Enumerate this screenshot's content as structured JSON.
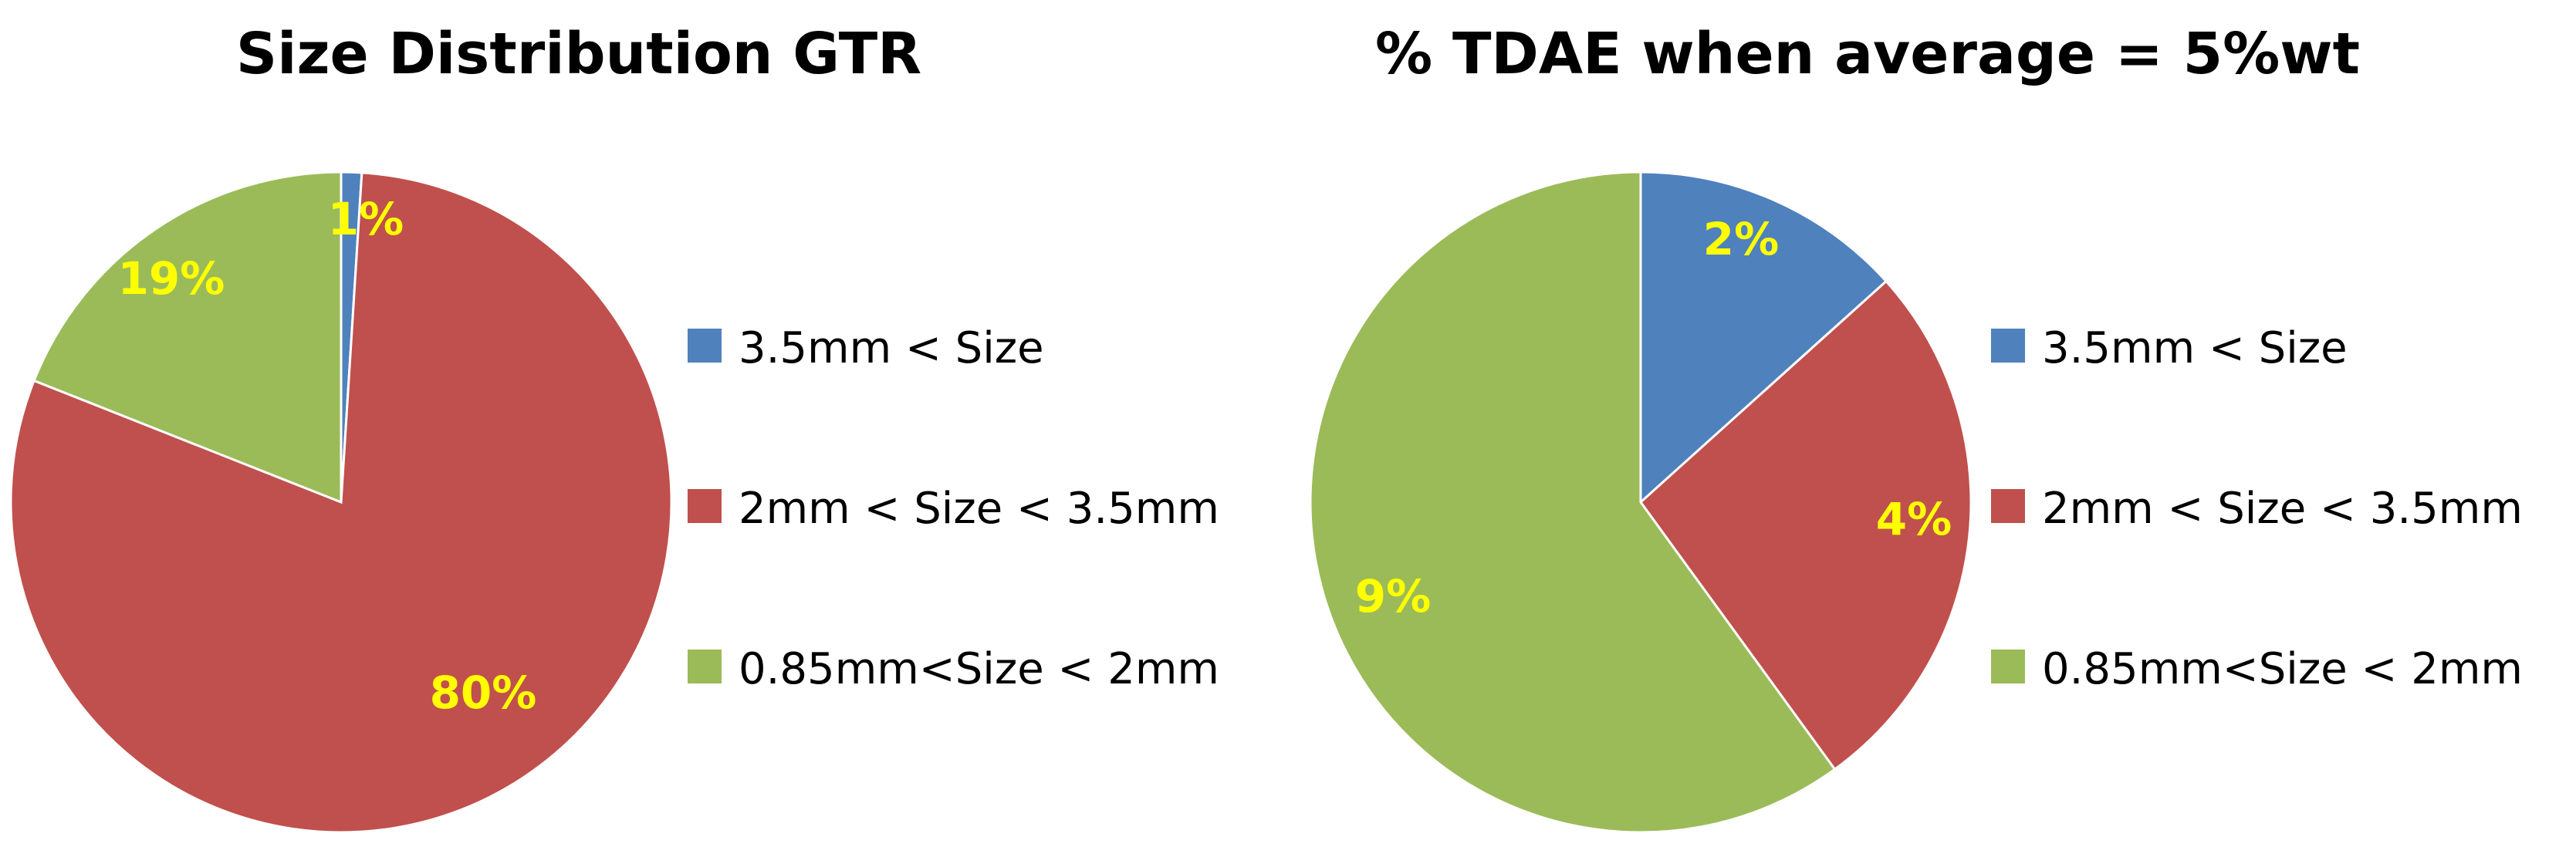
{
  "chart_data": [
    {
      "type": "pie",
      "title": "Size Distribution GTR",
      "categories": [
        "3.5mm < Size",
        "2mm < Size < 3.5mm",
        "0.85mm<Size < 2mm"
      ],
      "values": [
        1,
        80,
        19
      ],
      "value_labels": [
        "1%",
        "80%",
        "19%"
      ],
      "colors": [
        "#4F81BD",
        "#C0504D",
        "#9BBB59"
      ],
      "label_color": "#FFFF00",
      "legend": "right"
    },
    {
      "type": "pie",
      "title": "% TDAE when average = 5%wt",
      "categories": [
        "3.5mm < Size",
        "2mm < Size < 3.5mm",
        "0.85mm<Size < 2mm"
      ],
      "values": [
        2,
        4,
        9
      ],
      "value_labels": [
        "2%",
        "4%",
        "9%"
      ],
      "colors": [
        "#4F81BD",
        "#C0504D",
        "#9BBB59"
      ],
      "label_color": "#FFFF00",
      "legend": "right"
    }
  ]
}
